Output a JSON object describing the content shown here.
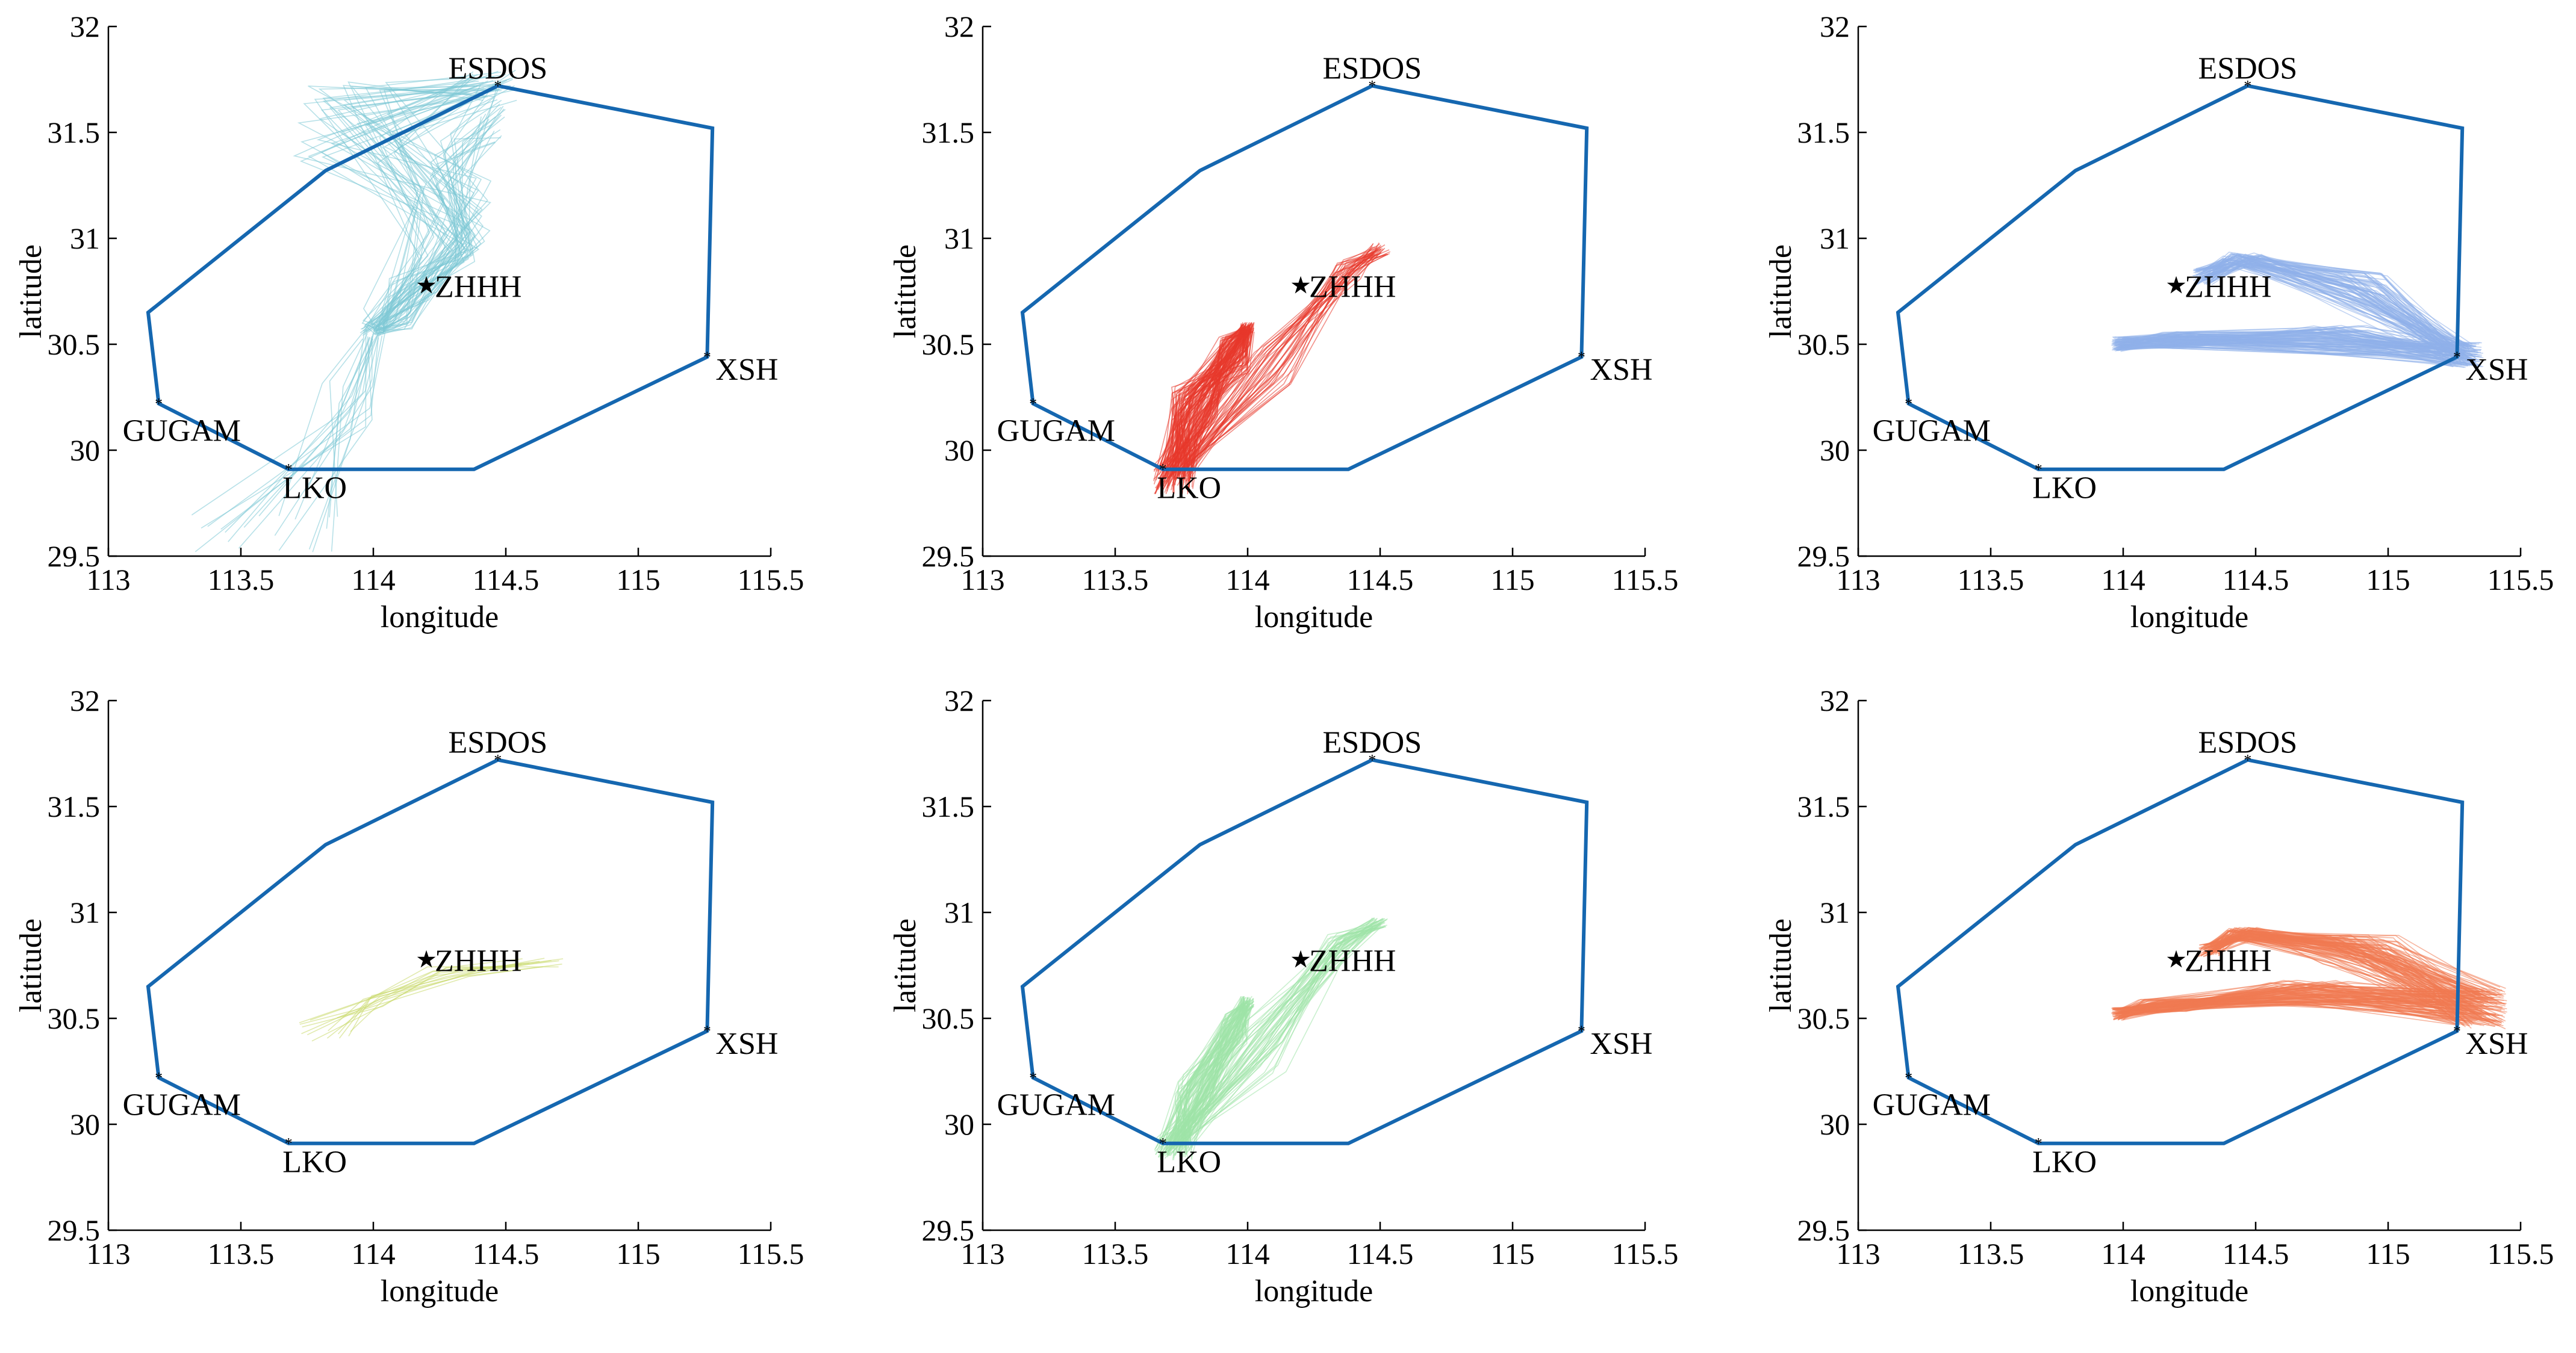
{
  "chart_data": [
    {
      "type": "line",
      "panel_position": "top-left",
      "title": "",
      "xlabel": "longitude",
      "ylabel": "latitude",
      "xlim": [
        113,
        115.5
      ],
      "ylim": [
        29.5,
        32
      ],
      "xticks": [
        "113",
        "113.5",
        "114",
        "114.5",
        "115",
        "115.5"
      ],
      "yticks": [
        "29.5",
        "30",
        "30.5",
        "31",
        "31.5",
        "32"
      ],
      "boundary": [
        [
          114.47,
          31.72
        ],
        [
          115.28,
          31.52
        ],
        [
          115.26,
          30.44
        ],
        [
          114.38,
          29.91
        ],
        [
          113.68,
          29.91
        ],
        [
          113.19,
          30.22
        ],
        [
          113.15,
          30.65
        ],
        [
          113.82,
          31.32
        ],
        [
          114.47,
          31.72
        ]
      ],
      "waypoints": [
        {
          "name": "ESDOS",
          "lon": 114.47,
          "lat": 31.72
        },
        {
          "name": "XSH",
          "lon": 115.26,
          "lat": 30.44
        },
        {
          "name": "LKO",
          "lon": 113.68,
          "lat": 29.91
        },
        {
          "name": "GUGAM",
          "lon": 113.19,
          "lat": 30.22
        }
      ],
      "airport": {
        "name": "ZHHH",
        "lon": 114.2,
        "lat": 30.78
      },
      "cluster_color": "#7ec9d6",
      "tracks_description_hidden": true
    },
    {
      "type": "line",
      "panel_position": "top-middle",
      "title": "",
      "xlabel": "longitude",
      "ylabel": "latitude",
      "xlim": [
        113,
        115.5
      ],
      "ylim": [
        29.5,
        32
      ],
      "xticks": [
        "113",
        "113.5",
        "114",
        "114.5",
        "115",
        "115.5"
      ],
      "yticks": [
        "29.5",
        "30",
        "30.5",
        "31",
        "31.5",
        "32"
      ],
      "boundary": [
        [
          114.47,
          31.72
        ],
        [
          115.28,
          31.52
        ],
        [
          115.26,
          30.44
        ],
        [
          114.38,
          29.91
        ],
        [
          113.68,
          29.91
        ],
        [
          113.19,
          30.22
        ],
        [
          113.15,
          30.65
        ],
        [
          113.82,
          31.32
        ],
        [
          114.47,
          31.72
        ]
      ],
      "waypoints": [
        {
          "name": "ESDOS",
          "lon": 114.47,
          "lat": 31.72
        },
        {
          "name": "XSH",
          "lon": 115.26,
          "lat": 30.44
        },
        {
          "name": "LKO",
          "lon": 113.68,
          "lat": 29.91
        },
        {
          "name": "GUGAM",
          "lon": 113.19,
          "lat": 30.22
        }
      ],
      "airport": {
        "name": "ZHHH",
        "lon": 114.2,
        "lat": 30.78
      },
      "cluster_color": "#e8392c"
    },
    {
      "type": "line",
      "panel_position": "top-right",
      "title": "",
      "xlabel": "longitude",
      "ylabel": "latitude",
      "xlim": [
        113,
        115.5
      ],
      "ylim": [
        29.5,
        32
      ],
      "xticks": [
        "113",
        "113.5",
        "114",
        "114.5",
        "115",
        "115.5"
      ],
      "yticks": [
        "29.5",
        "30",
        "30.5",
        "31",
        "31.5",
        "32"
      ],
      "boundary": [
        [
          114.47,
          31.72
        ],
        [
          115.28,
          31.52
        ],
        [
          115.26,
          30.44
        ],
        [
          114.38,
          29.91
        ],
        [
          113.68,
          29.91
        ],
        [
          113.19,
          30.22
        ],
        [
          113.15,
          30.65
        ],
        [
          113.82,
          31.32
        ],
        [
          114.47,
          31.72
        ]
      ],
      "waypoints": [
        {
          "name": "ESDOS",
          "lon": 114.47,
          "lat": 31.72
        },
        {
          "name": "XSH",
          "lon": 115.26,
          "lat": 30.44
        },
        {
          "name": "LKO",
          "lon": 113.68,
          "lat": 29.91
        },
        {
          "name": "GUGAM",
          "lon": 113.19,
          "lat": 30.22
        }
      ],
      "airport": {
        "name": "ZHHH",
        "lon": 114.2,
        "lat": 30.78
      },
      "cluster_color": "#8fb0ea"
    },
    {
      "type": "line",
      "panel_position": "bottom-left",
      "title": "",
      "xlabel": "longitude",
      "ylabel": "latitude",
      "xlim": [
        113,
        115.5
      ],
      "ylim": [
        29.5,
        32
      ],
      "xticks": [
        "113",
        "113.5",
        "114",
        "114.5",
        "115",
        "115.5"
      ],
      "yticks": [
        "29.5",
        "30",
        "30.5",
        "31",
        "31.5",
        "32"
      ],
      "boundary": [
        [
          114.47,
          31.72
        ],
        [
          115.28,
          31.52
        ],
        [
          115.26,
          30.44
        ],
        [
          114.38,
          29.91
        ],
        [
          113.68,
          29.91
        ],
        [
          113.19,
          30.22
        ],
        [
          113.15,
          30.65
        ],
        [
          113.82,
          31.32
        ],
        [
          114.47,
          31.72
        ]
      ],
      "waypoints": [
        {
          "name": "ESDOS",
          "lon": 114.47,
          "lat": 31.72
        },
        {
          "name": "XSH",
          "lon": 115.26,
          "lat": 30.44
        },
        {
          "name": "LKO",
          "lon": 113.68,
          "lat": 29.91
        },
        {
          "name": "GUGAM",
          "lon": 113.19,
          "lat": 30.22
        }
      ],
      "airport": {
        "name": "ZHHH",
        "lon": 114.2,
        "lat": 30.78
      },
      "cluster_color": "#c9d96a"
    },
    {
      "type": "line",
      "panel_position": "bottom-middle",
      "title": "",
      "xlabel": "longitude",
      "ylabel": "latitude",
      "xlim": [
        113,
        115.5
      ],
      "ylim": [
        29.5,
        32
      ],
      "xticks": [
        "113",
        "113.5",
        "114",
        "114.5",
        "115",
        "115.5"
      ],
      "yticks": [
        "29.5",
        "30",
        "30.5",
        "31",
        "31.5",
        "32"
      ],
      "boundary": [
        [
          114.47,
          31.72
        ],
        [
          115.28,
          31.52
        ],
        [
          115.26,
          30.44
        ],
        [
          114.38,
          29.91
        ],
        [
          113.68,
          29.91
        ],
        [
          113.19,
          30.22
        ],
        [
          113.15,
          30.65
        ],
        [
          113.82,
          31.32
        ],
        [
          114.47,
          31.72
        ]
      ],
      "waypoints": [
        {
          "name": "ESDOS",
          "lon": 114.47,
          "lat": 31.72
        },
        {
          "name": "XSH",
          "lon": 115.26,
          "lat": 30.44
        },
        {
          "name": "LKO",
          "lon": 113.68,
          "lat": 29.91
        },
        {
          "name": "GUGAM",
          "lon": 113.19,
          "lat": 30.22
        }
      ],
      "airport": {
        "name": "ZHHH",
        "lon": 114.2,
        "lat": 30.78
      },
      "cluster_color": "#9fe3a8"
    },
    {
      "type": "line",
      "panel_position": "bottom-right",
      "title": "",
      "xlabel": "longitude",
      "ylabel": "latitude",
      "xlim": [
        113,
        115.5
      ],
      "ylim": [
        29.5,
        32
      ],
      "xticks": [
        "113",
        "113.5",
        "114",
        "114.5",
        "115",
        "115.5"
      ],
      "yticks": [
        "29.5",
        "30",
        "30.5",
        "31",
        "31.5",
        "32"
      ],
      "boundary": [
        [
          114.47,
          31.72
        ],
        [
          115.28,
          31.52
        ],
        [
          115.26,
          30.44
        ],
        [
          114.38,
          29.91
        ],
        [
          113.68,
          29.91
        ],
        [
          113.19,
          30.22
        ],
        [
          113.15,
          30.65
        ],
        [
          113.82,
          31.32
        ],
        [
          114.47,
          31.72
        ]
      ],
      "waypoints": [
        {
          "name": "ESDOS",
          "lon": 114.47,
          "lat": 31.72
        },
        {
          "name": "XSH",
          "lon": 115.26,
          "lat": 30.44
        },
        {
          "name": "LKO",
          "lon": 113.68,
          "lat": 29.91
        },
        {
          "name": "GUGAM",
          "lon": 113.19,
          "lat": 30.22
        }
      ],
      "airport": {
        "name": "ZHHH",
        "lon": 114.2,
        "lat": 30.78
      },
      "cluster_color": "#f07a52"
    }
  ],
  "colors": {
    "boundary": "#1567b0",
    "airport_marker": "#d42020",
    "waypoint_marker": "#5a4fcf"
  }
}
